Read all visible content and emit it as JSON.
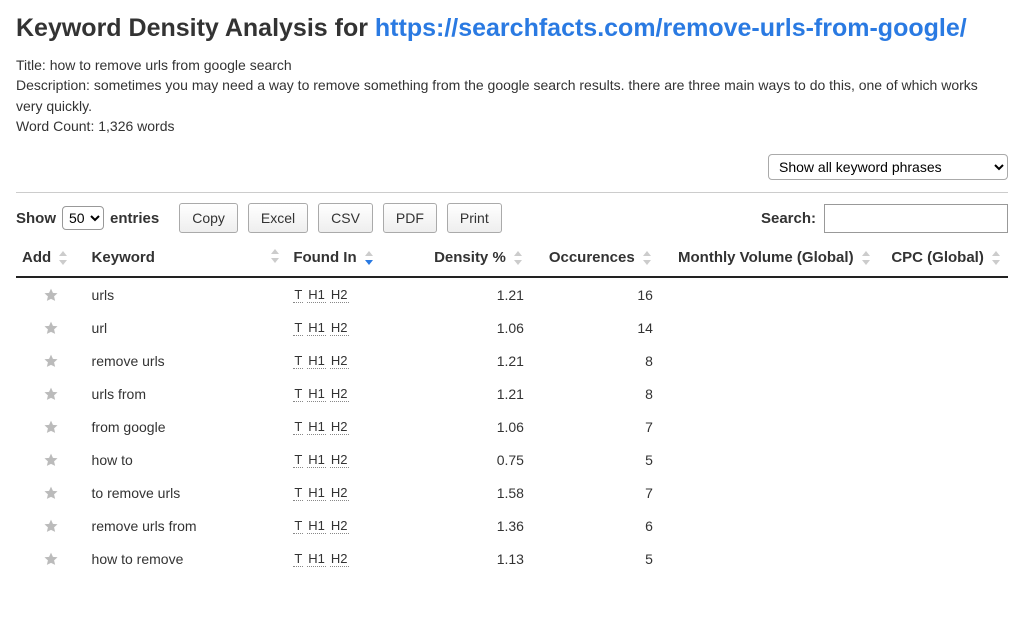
{
  "header": {
    "title_prefix": "Keyword Density Analysis for ",
    "title_url_text": "https://searchfacts.com/remove-urls-from-google/",
    "meta_title_label": "Title: ",
    "meta_title": "how to remove urls from google search",
    "meta_desc_label": "Description: ",
    "meta_desc": "sometimes you may need a way to remove something from the google search results. there are three main ways to do this, one of which works very quickly.",
    "word_count_label": "Word Count: ",
    "word_count": "1,326 words"
  },
  "filter": {
    "select_label": "Show all keyword phrases"
  },
  "controls": {
    "show_label_pre": "Show",
    "show_label_post": "entries",
    "show_value": "50",
    "buttons": {
      "copy": "Copy",
      "excel": "Excel",
      "csv": "CSV",
      "pdf": "PDF",
      "print": "Print"
    },
    "search_label": "Search:"
  },
  "table": {
    "columns": {
      "add": "Add",
      "keyword": "Keyword",
      "found_in": "Found In",
      "density": "Density %",
      "occurrences": "Occurences",
      "monthly_volume": "Monthly Volume (Global)",
      "cpc": "CPC (Global)"
    },
    "sort": {
      "column": "found_in",
      "dir": "desc"
    },
    "found_in_tags": [
      "T",
      "H1",
      "H2"
    ],
    "rows": [
      {
        "keyword": "urls",
        "density": "1.21",
        "occurrences": "16",
        "monthly_volume": "",
        "cpc": ""
      },
      {
        "keyword": "url",
        "density": "1.06",
        "occurrences": "14",
        "monthly_volume": "",
        "cpc": ""
      },
      {
        "keyword": "remove urls",
        "density": "1.21",
        "occurrences": "8",
        "monthly_volume": "",
        "cpc": ""
      },
      {
        "keyword": "urls from",
        "density": "1.21",
        "occurrences": "8",
        "monthly_volume": "",
        "cpc": ""
      },
      {
        "keyword": "from google",
        "density": "1.06",
        "occurrences": "7",
        "monthly_volume": "",
        "cpc": ""
      },
      {
        "keyword": "how to",
        "density": "0.75",
        "occurrences": "5",
        "monthly_volume": "",
        "cpc": ""
      },
      {
        "keyword": "to remove urls",
        "density": "1.58",
        "occurrences": "7",
        "monthly_volume": "",
        "cpc": ""
      },
      {
        "keyword": "remove urls from",
        "density": "1.36",
        "occurrences": "6",
        "monthly_volume": "",
        "cpc": ""
      },
      {
        "keyword": "how to remove",
        "density": "1.13",
        "occurrences": "5",
        "monthly_volume": "",
        "cpc": ""
      }
    ]
  },
  "style": {
    "link_color": "#2a7ae2",
    "sort_active_color": "#2a7ae2",
    "star_fill": "#bbbbbb",
    "header_border_color": "#222222",
    "tag_border_color": "#888888",
    "button_border": "#aaaaaa",
    "background": "#ffffff"
  }
}
